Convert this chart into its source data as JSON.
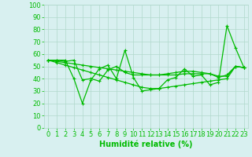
{
  "series": [
    [
      55,
      55,
      55,
      40,
      20,
      39,
      48,
      51,
      40,
      63,
      41,
      30,
      31,
      32,
      39,
      41,
      48,
      42,
      43,
      35,
      37,
      83,
      65,
      49
    ],
    [
      55,
      55,
      54,
      55,
      39,
      40,
      38,
      47,
      50,
      45,
      43,
      43,
      43,
      43,
      44,
      45,
      46,
      46,
      45,
      44,
      41,
      43,
      50,
      49
    ],
    [
      55,
      54,
      53,
      52,
      51,
      50,
      49,
      48,
      47,
      46,
      45,
      44,
      43,
      43,
      43,
      43,
      44,
      44,
      44,
      44,
      42,
      42,
      50,
      49
    ],
    [
      55,
      53,
      51,
      49,
      47,
      45,
      43,
      41,
      39,
      37,
      35,
      33,
      32,
      32,
      33,
      34,
      35,
      36,
      37,
      38,
      39,
      40,
      50,
      49
    ]
  ],
  "line_color": "#00bb00",
  "marker": "+",
  "marker_size": 3.5,
  "line_width": 0.9,
  "xlabel": "Humidité relative (%)",
  "xlabel_color": "#00bb00",
  "xlabel_fontsize": 7,
  "tick_color": "#00bb00",
  "tick_fontsize": 6,
  "xlim": [
    -0.5,
    23.5
  ],
  "ylim": [
    0,
    100
  ],
  "yticks": [
    0,
    10,
    20,
    30,
    40,
    50,
    60,
    70,
    80,
    90,
    100
  ],
  "xticks": [
    0,
    1,
    2,
    3,
    4,
    5,
    6,
    7,
    8,
    9,
    10,
    11,
    12,
    13,
    14,
    15,
    16,
    17,
    18,
    19,
    20,
    21,
    22,
    23
  ],
  "background_color": "#d8f0f0",
  "grid_color": "#b0d8cc",
  "grid_linewidth": 0.5
}
